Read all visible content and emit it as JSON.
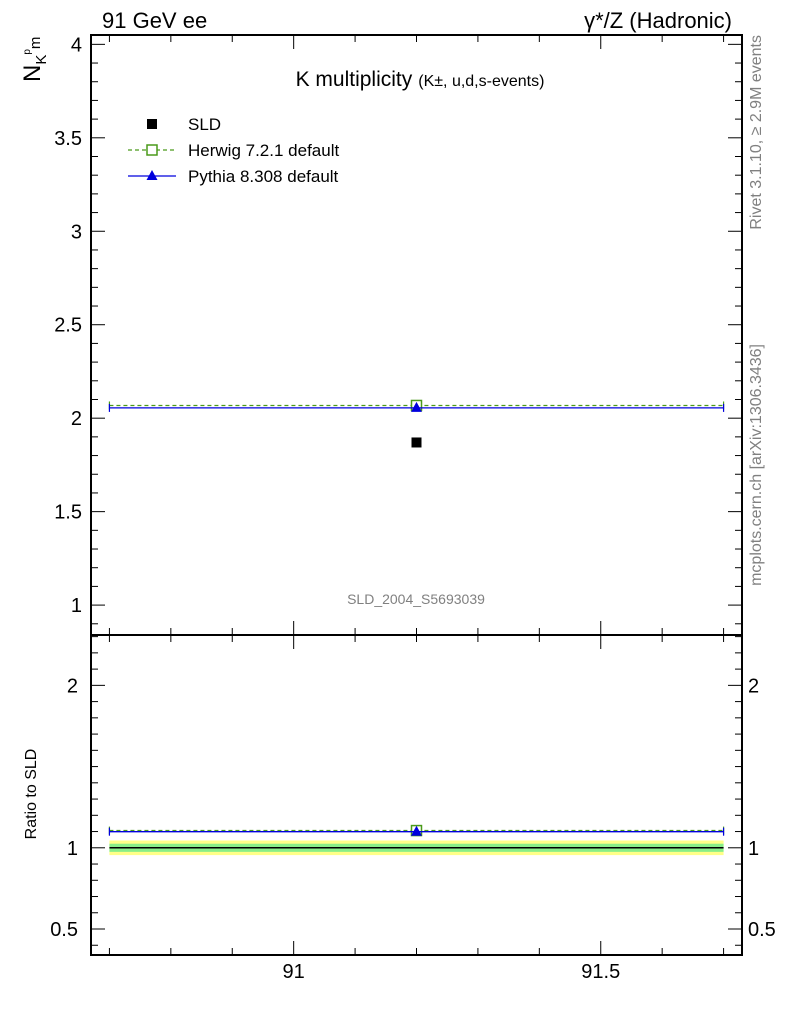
{
  "header": {
    "left": "91 GeV ee",
    "right": "γ*/Z (Hadronic)"
  },
  "side_text": {
    "rivet": "Rivet 3.1.10, ≥ 2.9M events",
    "mcplots": "mcplots.cern.ch [arXiv:1306.3436]"
  },
  "chart_data": [
    {
      "type": "scatter",
      "title": "K multiplicity",
      "title_suffix": "(K±, u,d,s-events)",
      "ylabel": "N_K^pm",
      "ylabel_main": "N",
      "ylabel_sub": "K",
      "ylabel_sup": "p",
      "ylabel_sub2": "m",
      "analysis_label": "SLD_2004_S5693039",
      "xlim": [
        90.67,
        91.73
      ],
      "ylim": [
        0.84,
        4.05
      ],
      "yticks": [
        1,
        1.5,
        2,
        2.5,
        3,
        3.5,
        4
      ],
      "ytick_labels": [
        "1",
        "1.5",
        "2",
        "2.5",
        "3",
        "3.5",
        "4"
      ],
      "legend_position": "top-left",
      "series": [
        {
          "name": "SLD",
          "color": "#000000",
          "marker": "filled-square",
          "line": "none",
          "x": [
            91.2
          ],
          "y": [
            1.87
          ]
        },
        {
          "name": "Herwig 7.2.1 default",
          "color": "#4a9a1a",
          "marker": "open-square",
          "line": "dashed",
          "x": [
            91.2
          ],
          "y": [
            2.068
          ],
          "x_range": [
            90.7,
            91.7
          ]
        },
        {
          "name": "Pythia 8.308 default",
          "color": "#0000dd",
          "marker": "filled-triangle",
          "line": "solid",
          "x": [
            91.2
          ],
          "y": [
            2.055
          ],
          "x_range": [
            90.7,
            91.7
          ]
        }
      ]
    },
    {
      "type": "scatter",
      "ylabel": "Ratio to SLD",
      "xlim": [
        90.67,
        91.73
      ],
      "ylim": [
        0.34,
        2.31
      ],
      "xticks": [
        91,
        91.5
      ],
      "xtick_labels": [
        "91",
        "91.5"
      ],
      "yticks": [
        0.5,
        1,
        2
      ],
      "ytick_labels": [
        "0.5",
        "1",
        "2"
      ],
      "bands": [
        {
          "name": "total uncertainty",
          "color": "#ffff88",
          "low": 0.955,
          "high": 1.045
        },
        {
          "name": "stat uncertainty",
          "color": "#88ee88",
          "low": 0.975,
          "high": 1.025
        }
      ],
      "series": [
        {
          "name": "Herwig 7.2.1 default",
          "color": "#4a9a1a",
          "marker": "open-square",
          "line": "dashed",
          "x": [
            91.2
          ],
          "y": [
            1.106
          ],
          "x_range": [
            90.7,
            91.7
          ]
        },
        {
          "name": "Pythia 8.308 default",
          "color": "#0000dd",
          "marker": "filled-triangle",
          "line": "solid",
          "x": [
            91.2
          ],
          "y": [
            1.099
          ],
          "x_range": [
            90.7,
            91.7
          ]
        }
      ]
    }
  ]
}
